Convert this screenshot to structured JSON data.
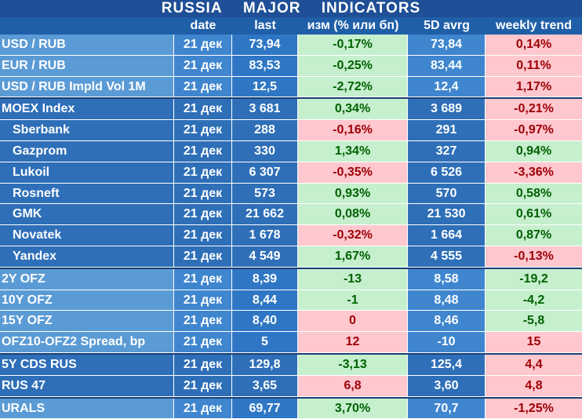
{
  "title": [
    "RUSSIA",
    "MAJOR",
    "INDICATORS"
  ],
  "headers": [
    "date",
    "last",
    "изм (% или бп)",
    "5D avrg",
    "weekly trend"
  ],
  "rows": [
    {
      "name": "USD / RUB",
      "date": "21 дек",
      "last": "73,94",
      "chg": "-0,17%",
      "chg_sign": "pos",
      "avg": "73,84",
      "trend": "0,14%",
      "trend_sign": "neg",
      "group": "g1",
      "indent": false,
      "sep": false
    },
    {
      "name": "EUR / RUB",
      "date": "21 дек",
      "last": "83,53",
      "chg": "-0,25%",
      "chg_sign": "pos",
      "avg": "83,44",
      "trend": "0,11%",
      "trend_sign": "neg",
      "group": "g1",
      "indent": false,
      "sep": false
    },
    {
      "name": "USD / RUB Impld Vol 1M",
      "date": "21 дек",
      "last": "12,5",
      "chg": "-2,72%",
      "chg_sign": "pos",
      "avg": "12,4",
      "trend": "1,17%",
      "trend_sign": "neg",
      "group": "g1",
      "indent": false,
      "sep": false
    },
    {
      "name": "MOEX Index",
      "date": "21 дек",
      "last": "3 681",
      "chg": "0,34%",
      "chg_sign": "pos",
      "avg": "3 689",
      "trend": "-0,21%",
      "trend_sign": "neg",
      "group": "g2",
      "indent": false,
      "sep": true
    },
    {
      "name": "Sberbank",
      "date": "21 дек",
      "last": "288",
      "chg": "-0,16%",
      "chg_sign": "neg",
      "avg": "291",
      "trend": "-0,97%",
      "trend_sign": "neg",
      "group": "g2",
      "indent": true,
      "sep": false
    },
    {
      "name": "Gazprom",
      "date": "21 дек",
      "last": "330",
      "chg": "1,34%",
      "chg_sign": "pos",
      "avg": "327",
      "trend": "0,94%",
      "trend_sign": "pos",
      "group": "g2",
      "indent": true,
      "sep": false
    },
    {
      "name": "Lukoil",
      "date": "21 дек",
      "last": "6 307",
      "chg": "-0,35%",
      "chg_sign": "neg",
      "avg": "6 526",
      "trend": "-3,36%",
      "trend_sign": "neg",
      "group": "g2",
      "indent": true,
      "sep": false
    },
    {
      "name": "Rosneft",
      "date": "21 дек",
      "last": "573",
      "chg": "0,93%",
      "chg_sign": "pos",
      "avg": "570",
      "trend": "0,58%",
      "trend_sign": "pos",
      "group": "g2",
      "indent": true,
      "sep": false
    },
    {
      "name": "GMK",
      "date": "21 дек",
      "last": "21 662",
      "chg": "0,08%",
      "chg_sign": "pos",
      "avg": "21 530",
      "trend": "0,61%",
      "trend_sign": "pos",
      "group": "g2",
      "indent": true,
      "sep": false
    },
    {
      "name": "Novatek",
      "date": "21 дек",
      "last": "1 678",
      "chg": "-0,32%",
      "chg_sign": "neg",
      "avg": "1 664",
      "trend": "0,87%",
      "trend_sign": "pos",
      "group": "g2",
      "indent": true,
      "sep": false
    },
    {
      "name": "Yandex",
      "date": "21 дек",
      "last": "4 549",
      "chg": "1,67%",
      "chg_sign": "pos",
      "avg": "4 555",
      "trend": "-0,13%",
      "trend_sign": "neg",
      "group": "g2",
      "indent": true,
      "sep": false
    },
    {
      "name": "2Y OFZ",
      "date": "21 дек",
      "last": "8,39",
      "chg": "-13",
      "chg_sign": "pos",
      "avg": "8,58",
      "trend": "-19,2",
      "trend_sign": "pos",
      "group": "g1",
      "indent": false,
      "sep": true
    },
    {
      "name": "10Y OFZ",
      "date": "21 дек",
      "last": "8,44",
      "chg": "-1",
      "chg_sign": "pos",
      "avg": "8,48",
      "trend": "-4,2",
      "trend_sign": "pos",
      "group": "g1",
      "indent": false,
      "sep": false
    },
    {
      "name": "15Y OFZ",
      "date": "21 дек",
      "last": "8,40",
      "chg": "0",
      "chg_sign": "neg",
      "avg": "8,46",
      "trend": "-5,8",
      "trend_sign": "pos",
      "group": "g1",
      "indent": false,
      "sep": false
    },
    {
      "name": "OFZ10-OFZ2 Spread, bp",
      "date": "21 дек",
      "last": "5",
      "chg": "12",
      "chg_sign": "neg",
      "avg": "-10",
      "trend": "15",
      "trend_sign": "neg",
      "group": "g1",
      "indent": false,
      "sep": false
    },
    {
      "name": "5Y CDS RUS",
      "date": "21 дек",
      "last": "129,8",
      "chg": "-3,13",
      "chg_sign": "pos",
      "avg": "125,4",
      "trend": "4,4",
      "trend_sign": "neg",
      "group": "g2",
      "indent": false,
      "sep": true
    },
    {
      "name": "RUS 47",
      "date": "21 дек",
      "last": "3,65",
      "chg": "6,8",
      "chg_sign": "neg",
      "avg": "3,60",
      "trend": "4,8",
      "trend_sign": "neg",
      "group": "g2",
      "indent": false,
      "sep": false
    },
    {
      "name": "URALS",
      "date": "21 дек",
      "last": "69,77",
      "chg": "3,70%",
      "chg_sign": "pos",
      "avg": "70,7",
      "trend": "-1,25%",
      "trend_sign": "neg",
      "group": "g1",
      "indent": false,
      "sep": true
    }
  ]
}
